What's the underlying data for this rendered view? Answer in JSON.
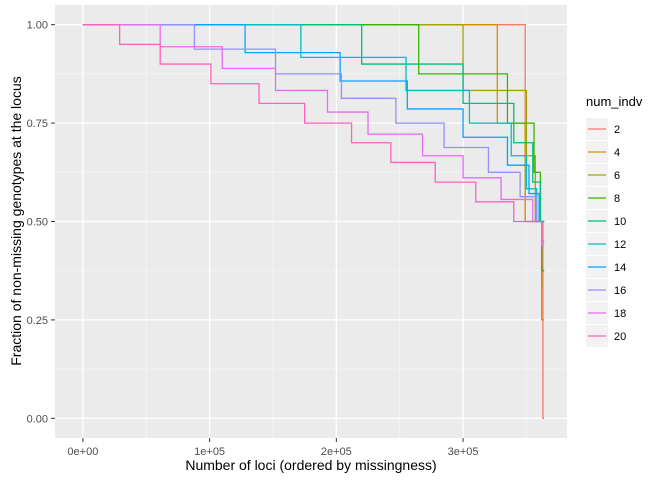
{
  "chart_data": {
    "type": "line",
    "step": true,
    "xlabel": "Number of loci (ordered by missingness)",
    "ylabel": "Fraction of non-missing genotypes at the locus",
    "xlim": [
      -22000,
      382000
    ],
    "ylim": [
      -0.05,
      1.05
    ],
    "xticks": [
      0,
      100000,
      200000,
      300000
    ],
    "xtick_labels": [
      "0e+00",
      "1e+05",
      "2e+05",
      "3e+05"
    ],
    "yticks": [
      0,
      0.25,
      0.5,
      0.75,
      1.0
    ],
    "ytick_labels": [
      "0.00",
      "0.25",
      "0.50",
      "0.75",
      "1.00"
    ],
    "grid": true,
    "legend_title": "num_indv",
    "legend_position": "right",
    "series": [
      {
        "name": "2",
        "color": "#F8766D",
        "points": [
          [
            0,
            1.0
          ],
          [
            349000,
            1.0
          ],
          [
            349000,
            0.5
          ],
          [
            362000,
            0.5
          ],
          [
            362000,
            0.5
          ],
          [
            363000,
            0.5
          ],
          [
            363000,
            0.0
          ],
          [
            364000,
            0.0
          ]
        ]
      },
      {
        "name": "4",
        "color": "#D89000",
        "points": [
          [
            0,
            1.0
          ],
          [
            327000,
            1.0
          ],
          [
            327000,
            0.75
          ],
          [
            349000,
            0.75
          ],
          [
            349000,
            0.5
          ],
          [
            360000,
            0.5
          ],
          [
            360000,
            0.5
          ],
          [
            362000,
            0.5
          ],
          [
            362000,
            0.25
          ],
          [
            364000,
            0.25
          ]
        ]
      },
      {
        "name": "6",
        "color": "#A3A500",
        "points": [
          [
            0,
            1.0
          ],
          [
            300000,
            1.0
          ],
          [
            300000,
            0.833
          ],
          [
            350000,
            0.833
          ],
          [
            350000,
            0.667
          ],
          [
            357000,
            0.667
          ],
          [
            357000,
            0.5
          ],
          [
            362000,
            0.5
          ],
          [
            362000,
            0.333
          ],
          [
            363000,
            0.333
          ]
        ]
      },
      {
        "name": "8",
        "color": "#39B600",
        "points": [
          [
            0,
            1.0
          ],
          [
            265000,
            1.0
          ],
          [
            265000,
            0.875
          ],
          [
            335000,
            0.875
          ],
          [
            335000,
            0.75
          ],
          [
            356000,
            0.75
          ],
          [
            356000,
            0.625
          ],
          [
            361000,
            0.625
          ],
          [
            361000,
            0.5
          ],
          [
            362000,
            0.5
          ],
          [
            362000,
            0.375
          ],
          [
            364000,
            0.375
          ]
        ]
      },
      {
        "name": "10",
        "color": "#00BF7D",
        "points": [
          [
            0,
            1.0
          ],
          [
            220000,
            1.0
          ],
          [
            220000,
            0.9
          ],
          [
            300000,
            0.9
          ],
          [
            300000,
            0.8
          ],
          [
            340000,
            0.8
          ],
          [
            340000,
            0.7
          ],
          [
            355000,
            0.7
          ],
          [
            355000,
            0.6
          ],
          [
            361000,
            0.6
          ],
          [
            361000,
            0.5
          ],
          [
            364000,
            0.5
          ]
        ]
      },
      {
        "name": "12",
        "color": "#00BFC4",
        "points": [
          [
            0,
            1.0
          ],
          [
            172000,
            1.0
          ],
          [
            172000,
            0.917
          ],
          [
            255000,
            0.917
          ],
          [
            255000,
            0.833
          ],
          [
            305000,
            0.833
          ],
          [
            305000,
            0.75
          ],
          [
            338000,
            0.75
          ],
          [
            338000,
            0.667
          ],
          [
            350000,
            0.667
          ],
          [
            350000,
            0.583
          ],
          [
            358000,
            0.583
          ],
          [
            358000,
            0.5
          ],
          [
            364000,
            0.5
          ]
        ]
      },
      {
        "name": "14",
        "color": "#00A5FF",
        "points": [
          [
            0,
            1.0
          ],
          [
            128000,
            1.0
          ],
          [
            128000,
            0.929
          ],
          [
            203000,
            0.929
          ],
          [
            203000,
            0.857
          ],
          [
            256000,
            0.857
          ],
          [
            256000,
            0.786
          ],
          [
            300000,
            0.786
          ],
          [
            300000,
            0.714
          ],
          [
            335000,
            0.714
          ],
          [
            335000,
            0.643
          ],
          [
            352000,
            0.643
          ],
          [
            352000,
            0.571
          ],
          [
            360000,
            0.571
          ],
          [
            360000,
            0.5
          ],
          [
            364000,
            0.5
          ]
        ]
      },
      {
        "name": "16",
        "color": "#9590FF",
        "points": [
          [
            0,
            1.0
          ],
          [
            88000,
            1.0
          ],
          [
            88000,
            0.938
          ],
          [
            152000,
            0.938
          ],
          [
            152000,
            0.875
          ],
          [
            204000,
            0.875
          ],
          [
            204000,
            0.813
          ],
          [
            247000,
            0.813
          ],
          [
            247000,
            0.75
          ],
          [
            285000,
            0.75
          ],
          [
            285000,
            0.688
          ],
          [
            320000,
            0.688
          ],
          [
            320000,
            0.625
          ],
          [
            345000,
            0.625
          ],
          [
            345000,
            0.563
          ],
          [
            358000,
            0.563
          ],
          [
            358000,
            0.5
          ],
          [
            362000,
            0.5
          ],
          [
            362000,
            0.438
          ],
          [
            363000,
            0.438
          ]
        ]
      },
      {
        "name": "18",
        "color": "#E76BF3",
        "points": [
          [
            0,
            1.0
          ],
          [
            61000,
            1.0
          ],
          [
            61000,
            0.944
          ],
          [
            110000,
            0.944
          ],
          [
            110000,
            0.889
          ],
          [
            152000,
            0.889
          ],
          [
            152000,
            0.833
          ],
          [
            193000,
            0.833
          ],
          [
            193000,
            0.778
          ],
          [
            225000,
            0.778
          ],
          [
            225000,
            0.722
          ],
          [
            268000,
            0.722
          ],
          [
            268000,
            0.667
          ],
          [
            300000,
            0.667
          ],
          [
            300000,
            0.611
          ],
          [
            330000,
            0.611
          ],
          [
            330000,
            0.556
          ],
          [
            355000,
            0.556
          ],
          [
            355000,
            0.5
          ],
          [
            362000,
            0.5
          ],
          [
            362000,
            0.444
          ],
          [
            364000,
            0.444
          ]
        ]
      },
      {
        "name": "20",
        "color": "#FF62BC",
        "points": [
          [
            0,
            1.0
          ],
          [
            29000,
            1.0
          ],
          [
            29000,
            0.95
          ],
          [
            61000,
            0.95
          ],
          [
            61000,
            0.9
          ],
          [
            101000,
            0.9
          ],
          [
            101000,
            0.85
          ],
          [
            139000,
            0.85
          ],
          [
            139000,
            0.8
          ],
          [
            175000,
            0.8
          ],
          [
            175000,
            0.75
          ],
          [
            212000,
            0.75
          ],
          [
            212000,
            0.7
          ],
          [
            243000,
            0.7
          ],
          [
            243000,
            0.65
          ],
          [
            278000,
            0.65
          ],
          [
            278000,
            0.6
          ],
          [
            310000,
            0.6
          ],
          [
            310000,
            0.55
          ],
          [
            340000,
            0.55
          ],
          [
            340000,
            0.5
          ],
          [
            362000,
            0.5
          ],
          [
            362000,
            0.45
          ],
          [
            364000,
            0.45
          ]
        ]
      }
    ]
  }
}
